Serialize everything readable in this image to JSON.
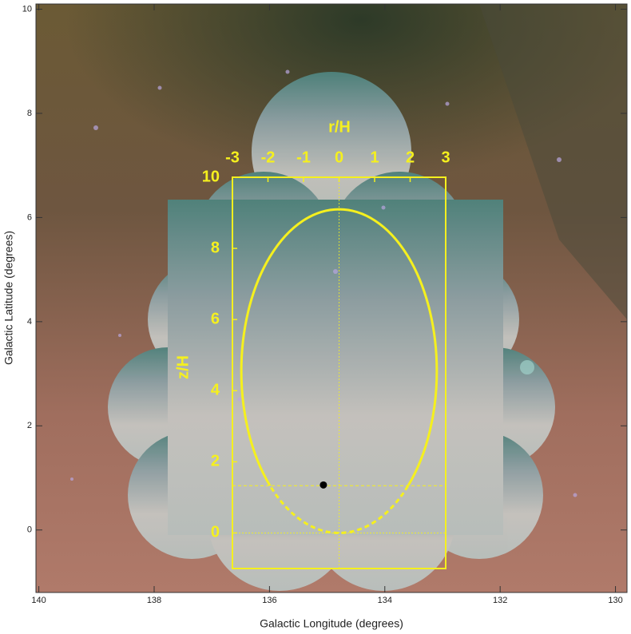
{
  "chart_data": {
    "type": "image",
    "x_label": "Galactic Longitude (degrees)",
    "y_label": "Galactic Latitude (degrees)",
    "xlim": [
      140.05,
      129.8
    ],
    "ylim": [
      -1.2,
      10.1
    ],
    "xticks": [
      140,
      138,
      136,
      134,
      132,
      130
    ],
    "yticks": [
      0,
      2,
      4,
      6,
      8,
      10
    ],
    "overlay": {
      "x_label": "r/H",
      "y_label": "z/H",
      "xlim": [
        -3,
        3
      ],
      "ylim": [
        -1,
        10
      ],
      "xticks": [
        -3,
        -2,
        -1,
        0,
        1,
        2,
        3
      ],
      "yticks": [
        0,
        2,
        4,
        6,
        8,
        10
      ],
      "ellipse_center": [
        0,
        4.55
      ],
      "ellipse_semi_axes": [
        2.75,
        4.55
      ],
      "reference_z": 1.33,
      "marker": [
        -0.44,
        1.35
      ],
      "color": "#f5f01e"
    }
  }
}
